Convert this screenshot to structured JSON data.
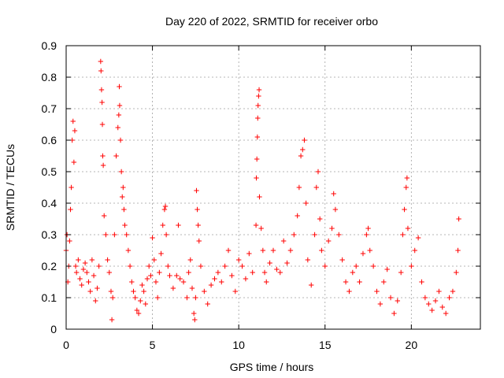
{
  "chart_data": {
    "type": "scatter",
    "title": "Day 220 of 2022, SRMTID for receiver orbo",
    "xlabel": "GPS time / hours",
    "ylabel": "SRMTID / TECUs",
    "xlim": [
      0,
      24
    ],
    "ylim": [
      0,
      0.9
    ],
    "x_ticks": [
      0,
      5,
      10,
      15,
      20
    ],
    "x_tick_labels": [
      "0",
      "5",
      "10",
      "15",
      "20"
    ],
    "y_ticks": [
      0,
      0.1,
      0.2,
      0.3,
      0.4,
      0.5,
      0.6,
      0.7,
      0.8,
      0.9
    ],
    "y_tick_labels": [
      "0",
      "0.1",
      "0.2",
      "0.3",
      "0.4",
      "0.5",
      "0.6",
      "0.7",
      "0.8",
      "0.9"
    ],
    "grid": true,
    "marker": "+",
    "color": "#ff0000",
    "series": [
      {
        "name": "SRMTID",
        "points": [
          [
            0.0,
            0.25
          ],
          [
            0.05,
            0.3
          ],
          [
            0.1,
            0.15
          ],
          [
            0.15,
            0.2
          ],
          [
            0.2,
            0.28
          ],
          [
            0.25,
            0.38
          ],
          [
            0.3,
            0.45
          ],
          [
            0.35,
            0.6
          ],
          [
            0.4,
            0.66
          ],
          [
            0.45,
            0.53
          ],
          [
            0.5,
            0.63
          ],
          [
            0.55,
            0.2
          ],
          [
            0.6,
            0.18
          ],
          [
            0.7,
            0.22
          ],
          [
            0.8,
            0.16
          ],
          [
            0.9,
            0.14
          ],
          [
            1.0,
            0.19
          ],
          [
            1.1,
            0.21
          ],
          [
            1.2,
            0.18
          ],
          [
            1.3,
            0.15
          ],
          [
            1.4,
            0.12
          ],
          [
            1.5,
            0.22
          ],
          [
            1.6,
            0.17
          ],
          [
            1.7,
            0.09
          ],
          [
            1.8,
            0.13
          ],
          [
            1.9,
            0.2
          ],
          [
            2.0,
            0.85
          ],
          [
            2.02,
            0.82
          ],
          [
            2.05,
            0.76
          ],
          [
            2.08,
            0.72
          ],
          [
            2.1,
            0.65
          ],
          [
            2.12,
            0.55
          ],
          [
            2.15,
            0.52
          ],
          [
            2.2,
            0.36
          ],
          [
            2.3,
            0.3
          ],
          [
            2.4,
            0.22
          ],
          [
            2.5,
            0.18
          ],
          [
            2.6,
            0.12
          ],
          [
            2.65,
            0.03
          ],
          [
            2.7,
            0.1
          ],
          [
            2.8,
            0.3
          ],
          [
            2.9,
            0.55
          ],
          [
            3.0,
            0.64
          ],
          [
            3.05,
            0.68
          ],
          [
            3.08,
            0.77
          ],
          [
            3.1,
            0.71
          ],
          [
            3.15,
            0.6
          ],
          [
            3.2,
            0.5
          ],
          [
            3.25,
            0.42
          ],
          [
            3.3,
            0.45
          ],
          [
            3.35,
            0.38
          ],
          [
            3.4,
            0.33
          ],
          [
            3.5,
            0.3
          ],
          [
            3.6,
            0.25
          ],
          [
            3.7,
            0.2
          ],
          [
            3.8,
            0.15
          ],
          [
            3.9,
            0.12
          ],
          [
            4.0,
            0.1
          ],
          [
            4.1,
            0.06
          ],
          [
            4.2,
            0.05
          ],
          [
            4.3,
            0.09
          ],
          [
            4.4,
            0.14
          ],
          [
            4.5,
            0.12
          ],
          [
            4.6,
            0.08
          ],
          [
            4.7,
            0.16
          ],
          [
            4.8,
            0.2
          ],
          [
            4.9,
            0.17
          ],
          [
            5.0,
            0.29
          ],
          [
            5.1,
            0.22
          ],
          [
            5.2,
            0.15
          ],
          [
            5.3,
            0.1
          ],
          [
            5.4,
            0.18
          ],
          [
            5.5,
            0.24
          ],
          [
            5.6,
            0.33
          ],
          [
            5.7,
            0.38
          ],
          [
            5.75,
            0.39
          ],
          [
            5.8,
            0.3
          ],
          [
            5.9,
            0.2
          ],
          [
            6.0,
            0.17
          ],
          [
            6.2,
            0.13
          ],
          [
            6.4,
            0.17
          ],
          [
            6.5,
            0.33
          ],
          [
            6.6,
            0.16
          ],
          [
            6.8,
            0.15
          ],
          [
            7.0,
            0.1
          ],
          [
            7.1,
            0.18
          ],
          [
            7.2,
            0.22
          ],
          [
            7.3,
            0.13
          ],
          [
            7.4,
            0.05
          ],
          [
            7.45,
            0.03
          ],
          [
            7.5,
            0.1
          ],
          [
            7.55,
            0.44
          ],
          [
            7.6,
            0.38
          ],
          [
            7.65,
            0.33
          ],
          [
            7.7,
            0.28
          ],
          [
            7.8,
            0.2
          ],
          [
            8.0,
            0.12
          ],
          [
            8.2,
            0.08
          ],
          [
            8.4,
            0.14
          ],
          [
            8.6,
            0.16
          ],
          [
            8.8,
            0.18
          ],
          [
            9.0,
            0.15
          ],
          [
            9.2,
            0.2
          ],
          [
            9.4,
            0.25
          ],
          [
            9.6,
            0.17
          ],
          [
            9.8,
            0.12
          ],
          [
            10.0,
            0.22
          ],
          [
            10.2,
            0.2
          ],
          [
            10.4,
            0.16
          ],
          [
            10.6,
            0.24
          ],
          [
            10.8,
            0.18
          ],
          [
            11.0,
            0.33
          ],
          [
            11.02,
            0.48
          ],
          [
            11.05,
            0.54
          ],
          [
            11.08,
            0.61
          ],
          [
            11.1,
            0.67
          ],
          [
            11.12,
            0.71
          ],
          [
            11.15,
            0.74
          ],
          [
            11.18,
            0.76
          ],
          [
            11.2,
            0.42
          ],
          [
            11.3,
            0.32
          ],
          [
            11.4,
            0.25
          ],
          [
            11.5,
            0.18
          ],
          [
            11.6,
            0.15
          ],
          [
            11.8,
            0.21
          ],
          [
            12.0,
            0.25
          ],
          [
            12.2,
            0.19
          ],
          [
            12.4,
            0.18
          ],
          [
            12.6,
            0.28
          ],
          [
            12.8,
            0.21
          ],
          [
            13.0,
            0.25
          ],
          [
            13.2,
            0.3
          ],
          [
            13.4,
            0.36
          ],
          [
            13.5,
            0.45
          ],
          [
            13.6,
            0.55
          ],
          [
            13.7,
            0.57
          ],
          [
            13.8,
            0.6
          ],
          [
            13.9,
            0.4
          ],
          [
            14.0,
            0.22
          ],
          [
            14.2,
            0.14
          ],
          [
            14.4,
            0.3
          ],
          [
            14.5,
            0.45
          ],
          [
            14.6,
            0.5
          ],
          [
            14.7,
            0.35
          ],
          [
            14.8,
            0.25
          ],
          [
            15.0,
            0.2
          ],
          [
            15.2,
            0.28
          ],
          [
            15.4,
            0.32
          ],
          [
            15.5,
            0.43
          ],
          [
            15.6,
            0.38
          ],
          [
            15.8,
            0.3
          ],
          [
            16.0,
            0.22
          ],
          [
            16.2,
            0.15
          ],
          [
            16.4,
            0.12
          ],
          [
            16.6,
            0.18
          ],
          [
            16.8,
            0.2
          ],
          [
            17.0,
            0.15
          ],
          [
            17.2,
            0.24
          ],
          [
            17.4,
            0.3
          ],
          [
            17.5,
            0.32
          ],
          [
            17.6,
            0.25
          ],
          [
            17.8,
            0.2
          ],
          [
            18.0,
            0.12
          ],
          [
            18.2,
            0.08
          ],
          [
            18.4,
            0.15
          ],
          [
            18.6,
            0.19
          ],
          [
            18.8,
            0.1
          ],
          [
            19.0,
            0.05
          ],
          [
            19.2,
            0.09
          ],
          [
            19.4,
            0.18
          ],
          [
            19.5,
            0.3
          ],
          [
            19.6,
            0.38
          ],
          [
            19.7,
            0.45
          ],
          [
            19.75,
            0.48
          ],
          [
            19.8,
            0.32
          ],
          [
            20.0,
            0.2
          ],
          [
            20.2,
            0.25
          ],
          [
            20.4,
            0.29
          ],
          [
            20.6,
            0.15
          ],
          [
            20.8,
            0.1
          ],
          [
            21.0,
            0.08
          ],
          [
            21.2,
            0.06
          ],
          [
            21.4,
            0.09
          ],
          [
            21.6,
            0.12
          ],
          [
            21.8,
            0.07
          ],
          [
            22.0,
            0.05
          ],
          [
            22.2,
            0.1
          ],
          [
            22.4,
            0.12
          ],
          [
            22.6,
            0.18
          ],
          [
            22.7,
            0.25
          ],
          [
            22.75,
            0.35
          ]
        ]
      }
    ]
  }
}
